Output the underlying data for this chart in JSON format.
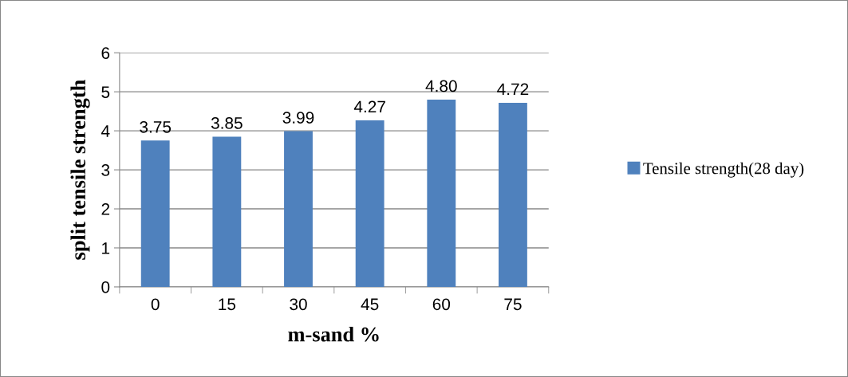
{
  "chart_data": {
    "type": "bar",
    "xlabel": "m-sand %",
    "ylabel": "split tensile strength",
    "categories": [
      "0",
      "15",
      "30",
      "45",
      "60",
      "75"
    ],
    "series": [
      {
        "name": "Tensile strength(28 day)",
        "color": "#4f81bd",
        "values": [
          3.75,
          3.85,
          3.99,
          4.27,
          4.8,
          4.72
        ],
        "value_labels": [
          "3.75",
          "3.85",
          "3.99",
          "4.27",
          "4.80",
          "4.72"
        ]
      }
    ],
    "ylim": [
      0,
      6
    ],
    "yticks": [
      0,
      1,
      2,
      3,
      4,
      5,
      6
    ],
    "grid": "y",
    "legend": "right"
  }
}
